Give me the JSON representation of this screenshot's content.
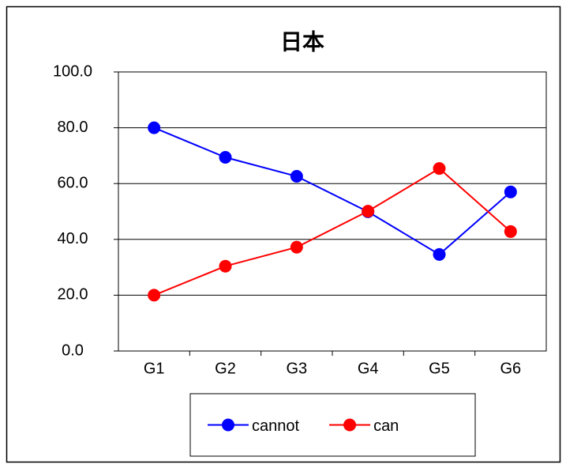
{
  "chart_data": {
    "type": "line",
    "title": "日本",
    "categories": [
      "G1",
      "G2",
      "G3",
      "G4",
      "G5",
      "G6"
    ],
    "series": [
      {
        "name": "cannot",
        "color": "#0000ff",
        "values": [
          80.0,
          69.4,
          62.6,
          49.9,
          34.6,
          57.0
        ]
      },
      {
        "name": "can",
        "color": "#ff0000",
        "values": [
          20.0,
          30.4,
          37.2,
          50.1,
          65.4,
          42.8
        ]
      }
    ],
    "ylim": [
      0,
      100
    ],
    "yticks": [
      {
        "value": 0,
        "label": "0.0"
      },
      {
        "value": 20,
        "label": "20.0"
      },
      {
        "value": 40,
        "label": "40.0"
      },
      {
        "value": 60,
        "label": "60.0"
      },
      {
        "value": 80,
        "label": "80.0"
      },
      {
        "value": 100,
        "label": "100.0"
      }
    ],
    "grid": true,
    "legend": "bottom"
  }
}
